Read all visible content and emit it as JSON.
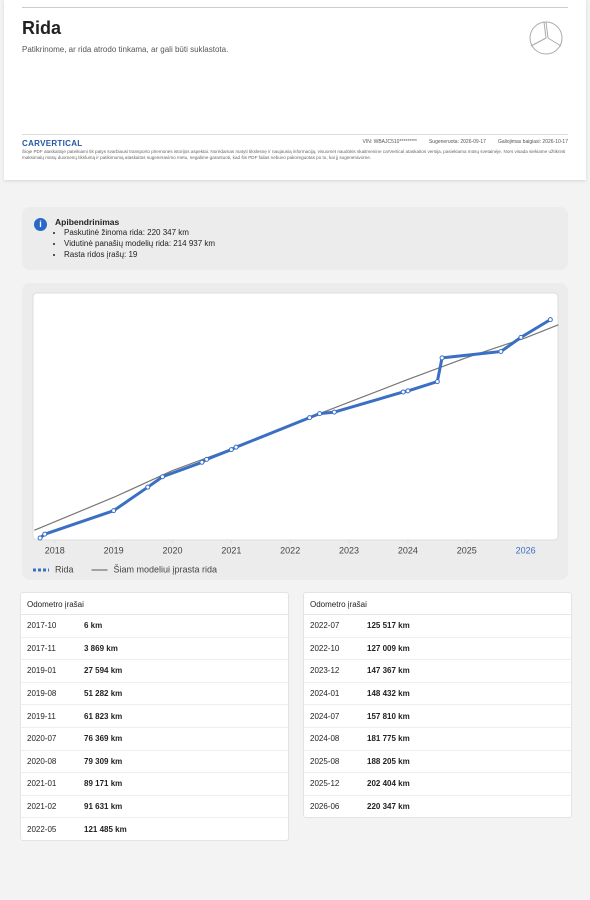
{
  "header": {
    "title": "Rida",
    "subtitle": "Patikrinome, ar rida atrodo tinkama, ar gali būti suklastota."
  },
  "report_bar": {
    "brand": "CARVERTICAL",
    "vin": "VIN: WBAJC510*********",
    "generated": "Sugeneruota: 2026-09-17",
    "expires": "Galiojimas baigiasi: 2026-10-17",
    "disclaimer": "Šioje PDF ataskaitoje pateikiami tik patys svarbiausi transporto priemonės istorijos aspektai. Norėdamas matyti tikslesnę ir naujausią informaciją, visuomet naudokis skaitmenine carVertical ataskaitos versija, pasiekiama mūsų svetainėje. Nors visada siekiame užtikrinti maksimalų mūsų duomenų tikslumą ir patikimumą ataskaitos sugeneravimo metu, negalime garantuoti, kad šis PDF failas nebuvo pakoreguotas po to, kai jį sugeneravome."
  },
  "summary": {
    "title": "Apibendrinimas",
    "items": [
      "Paskutinė žinoma rida: 220 347 km",
      "Vidutinė panašių modelių rida: 214 937 km",
      "Rasta ridos įrašų: 19"
    ]
  },
  "chart_data": {
    "type": "line",
    "xlim": [
      2017.63,
      2026.55
    ],
    "xticks": [
      2018,
      2019,
      2020,
      2021,
      2022,
      2023,
      2024,
      2025,
      2026
    ],
    "ylim": [
      0,
      225000
    ],
    "grid": false,
    "series": [
      {
        "name": "Rida",
        "color": "#3a6fc4",
        "markers": true,
        "x": [
          2017.75,
          2017.83,
          2019.0,
          2019.58,
          2019.83,
          2020.5,
          2020.58,
          2021.0,
          2021.08,
          2022.33,
          2022.5,
          2022.75,
          2023.92,
          2024.0,
          2024.5,
          2024.58,
          2025.58,
          2025.92,
          2026.42
        ],
        "values": [
          6,
          3869,
          27594,
          51282,
          61823,
          76369,
          79309,
          89171,
          91631,
          121485,
          125517,
          127009,
          147367,
          148432,
          157810,
          181775,
          188205,
          202404,
          220347
        ]
      },
      {
        "name": "Šiam modeliui įprasta rida",
        "color": "#777777",
        "markers": false,
        "x": [
          2017.66,
          2019,
          2020,
          2021,
          2022,
          2023,
          2024,
          2025,
          2026,
          2026.55
        ],
        "values": [
          8000,
          41000,
          68000,
          90000,
          114000,
          137000,
          160000,
          182000,
          202000,
          214937
        ]
      }
    ]
  },
  "tables": [
    {
      "title": "Odometro įrašai",
      "rows": [
        [
          "2017-10",
          "6 km"
        ],
        [
          "2017-11",
          "3 869 km"
        ],
        [
          "2019-01",
          "27 594 km"
        ],
        [
          "2019-08",
          "51 282 km"
        ],
        [
          "2019-11",
          "61 823 km"
        ],
        [
          "2020-07",
          "76 369 km"
        ],
        [
          "2020-08",
          "79 309 km"
        ],
        [
          "2021-01",
          "89 171 km"
        ],
        [
          "2021-02",
          "91 631 km"
        ],
        [
          "2022-05",
          "121 485 km"
        ]
      ]
    },
    {
      "title": "Odometro įrašai",
      "rows": [
        [
          "2022-07",
          "125 517 km"
        ],
        [
          "2022-10",
          "127 009 km"
        ],
        [
          "2023-12",
          "147 367 km"
        ],
        [
          "2024-01",
          "148 432 km"
        ],
        [
          "2024-07",
          "157 810 km"
        ],
        [
          "2024-08",
          "181 775 km"
        ],
        [
          "2025-08",
          "188 205 km"
        ],
        [
          "2025-12",
          "202 404 km"
        ],
        [
          "2026-06",
          "220 347 km"
        ]
      ]
    }
  ]
}
